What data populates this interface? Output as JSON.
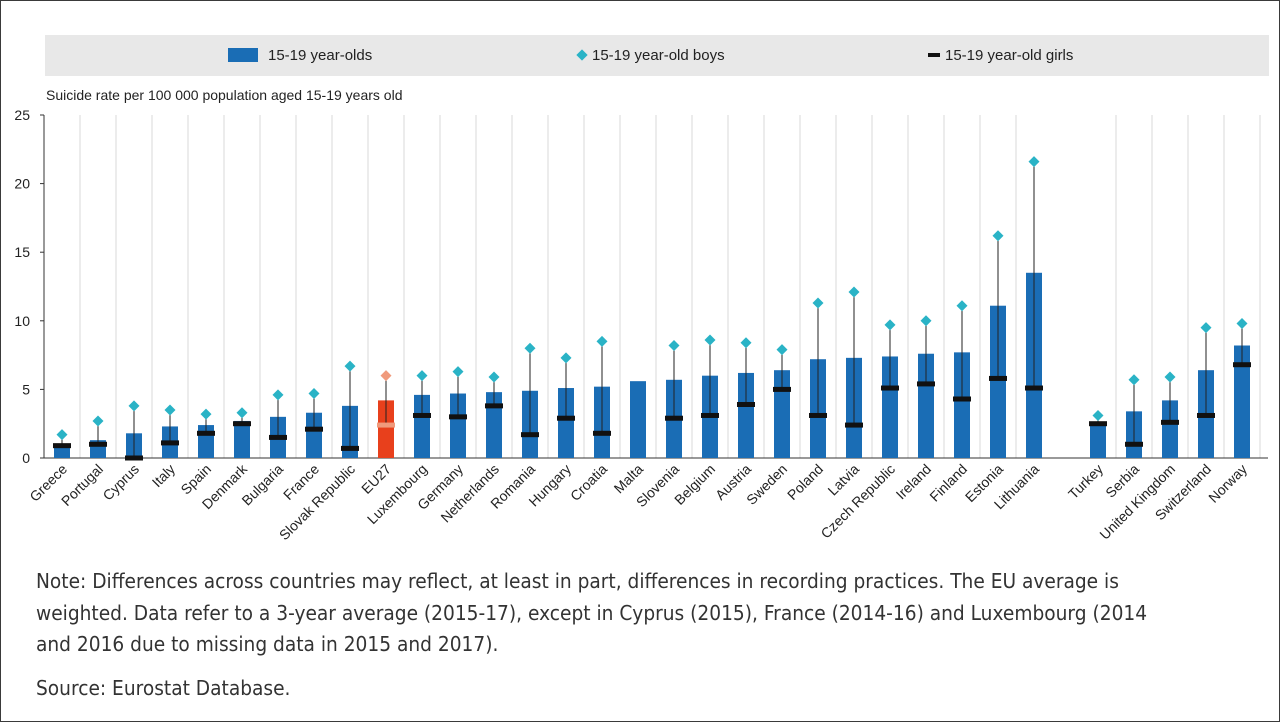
{
  "chart_data": {
    "type": "bar",
    "unit_label": "Suicide rate per 100 000 population aged 15-19 years old",
    "ylim": [
      0,
      25
    ],
    "yticks": [
      0,
      5,
      10,
      15,
      20,
      25
    ],
    "grid": "vertical",
    "legend_position": "top",
    "legend": {
      "bars": "15-19 year-olds",
      "boys": "15-19 year-old boys",
      "girls": "15-19 year-old girls"
    },
    "colors": {
      "bar": "#1a6db5",
      "highlight_bar": "#e8401c",
      "boys_marker": "#2ab3c6",
      "highlight_marker": "#f09a7c",
      "girls_marker": "#111111",
      "highlight_girls": "#f09a7c",
      "legend_band": "#e8e8e8",
      "grid": "#d8d8d8"
    },
    "series": [
      {
        "name": "15-19 year-olds",
        "values": [
          0.9,
          1.3,
          1.8,
          2.3,
          2.4,
          2.7,
          3.0,
          3.3,
          3.8,
          4.2,
          4.6,
          4.7,
          4.8,
          4.9,
          5.1,
          5.2,
          5.6,
          5.7,
          6.0,
          6.2,
          6.4,
          7.2,
          7.3,
          7.4,
          7.6,
          7.7,
          11.1,
          13.5,
          2.6,
          3.4,
          4.2,
          6.4,
          8.2
        ]
      },
      {
        "name": "15-19 year-old boys",
        "values": [
          1.7,
          2.7,
          3.8,
          3.5,
          3.2,
          3.3,
          4.6,
          4.7,
          6.7,
          6.0,
          6.0,
          6.3,
          5.9,
          8.0,
          7.3,
          8.5,
          null,
          8.2,
          8.6,
          8.4,
          7.9,
          11.3,
          12.1,
          9.7,
          10.0,
          11.1,
          16.2,
          21.6,
          3.1,
          5.7,
          5.9,
          9.5,
          9.8
        ]
      },
      {
        "name": "15-19 year-old girls",
        "values": [
          0.9,
          1.0,
          0.0,
          1.1,
          1.8,
          2.5,
          1.5,
          2.1,
          0.7,
          2.4,
          3.1,
          3.0,
          3.8,
          1.7,
          2.9,
          1.8,
          null,
          2.9,
          3.1,
          3.9,
          5.0,
          3.1,
          2.4,
          5.1,
          5.4,
          4.3,
          5.8,
          5.1,
          2.5,
          1.0,
          2.6,
          3.1,
          6.8
        ]
      }
    ],
    "categories": [
      "Greece",
      "Portugal",
      "Cyprus",
      "Italy",
      "Spain",
      "Denmark",
      "Bulgaria",
      "France",
      "Slovak Republic",
      "EU27",
      "Luxembourg",
      "Germany",
      "Netherlands",
      "Romania",
      "Hungary",
      "Croatia",
      "Malta",
      "Slovenia",
      "Belgium",
      "Austria",
      "Sweden",
      "Poland",
      "Latvia",
      "Czech Republic",
      "Ireland",
      "Finland",
      "Estonia",
      "Lithuania",
      "Turkey",
      "Serbia",
      "United Kingdom",
      "Switzerland",
      "Norway"
    ],
    "highlight_category": "EU27"
  },
  "notes": {
    "note": "Note: Differences across countries may reflect, at least in part, differences in recording practices. The EU average is weighted. Data refer to a 3-year average (2015-17), except in Cyprus (2015), France (2014-16) and Luxembourg (2014 and 2016 due to missing data in 2015 and 2017).",
    "source": "Source: Eurostat Database."
  }
}
